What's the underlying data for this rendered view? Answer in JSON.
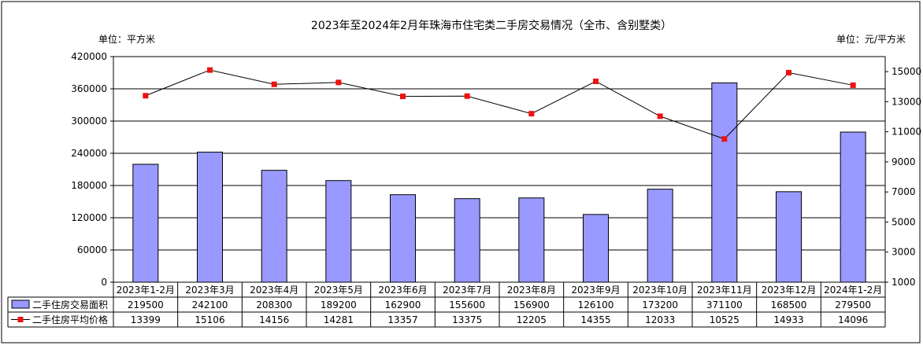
{
  "chart_data": {
    "type": "bar+line",
    "title": "2023年至2024年2月年珠海市住宅类二手房交易情况（全市、含别墅类）",
    "left_unit": "单位：平方米",
    "right_unit": "单位：元/平方米",
    "categories": [
      "2023年1-2月",
      "2023年3月",
      "2023年4月",
      "2023年5月",
      "2023年6月",
      "2023年7月",
      "2023年8月",
      "2023年9月",
      "2023年10月",
      "2023年11月",
      "2023年12月",
      "2024年1-2月"
    ],
    "y_left": {
      "min": 0,
      "max": 420000,
      "ticks": [
        0,
        60000,
        120000,
        180000,
        240000,
        300000,
        360000,
        420000
      ]
    },
    "y_right": {
      "min": 1000,
      "max": 16000,
      "ticks": [
        1000,
        3000,
        5000,
        7000,
        9000,
        11000,
        13000,
        15000
      ]
    },
    "grid": true,
    "series": [
      {
        "name": "二手住房交易面积",
        "kind": "bar",
        "axis": "left",
        "color": "#9999ff",
        "values": [
          219500,
          242100,
          208300,
          189200,
          162900,
          155600,
          156900,
          126100,
          173200,
          371100,
          168500,
          279500
        ]
      },
      {
        "name": "二手住房平均价格",
        "kind": "line",
        "axis": "right",
        "color": "#ee1111",
        "values": [
          13399,
          15106,
          14156,
          14281,
          13357,
          13375,
          12205,
          14355,
          12033,
          10525,
          14933,
          14096
        ]
      }
    ]
  }
}
